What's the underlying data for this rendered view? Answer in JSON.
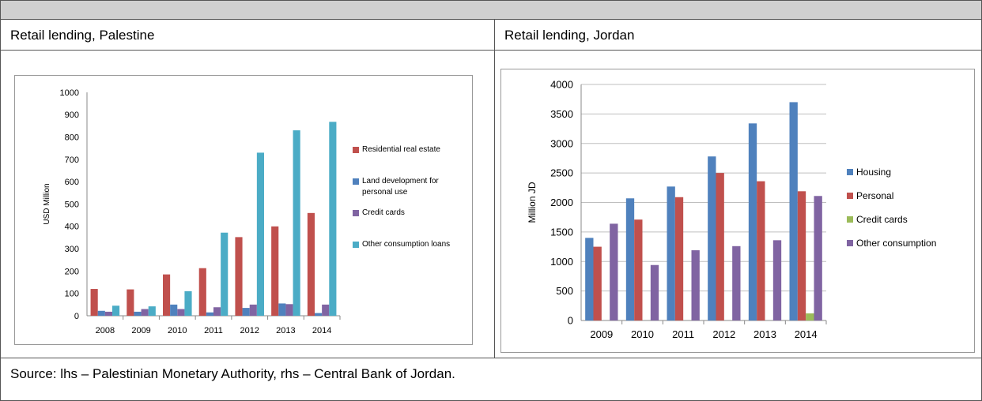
{
  "cells": [
    "Retail lending, Palestine",
    "Retail lending, Jordan"
  ],
  "source": "Source: lhs – Palestinian Monetary Authority, rhs – Central Bank of Jordan.",
  "chart_data": [
    {
      "type": "bar",
      "ylabel": "USD Million",
      "categories": [
        "2008",
        "2009",
        "2010",
        "2011",
        "2012",
        "2013",
        "2014"
      ],
      "series": [
        {
          "name": "Residential real estate",
          "color": "#c0504d",
          "values": [
            120,
            118,
            185,
            213,
            352,
            400,
            460
          ]
        },
        {
          "name": "Land development for personal use",
          "color": "#4f81bd",
          "values": [
            22,
            18,
            50,
            15,
            35,
            55,
            12
          ]
        },
        {
          "name": "Credit cards",
          "color": "#8064a2",
          "values": [
            18,
            30,
            30,
            38,
            50,
            52,
            50
          ]
        },
        {
          "name": "Other consumption loans",
          "color": "#4bacc6",
          "values": [
            45,
            42,
            110,
            372,
            730,
            830,
            868
          ]
        }
      ],
      "ylim": [
        0,
        1000
      ],
      "yticks": [
        0,
        100,
        200,
        300,
        400,
        500,
        600,
        700,
        800,
        900,
        1000
      ],
      "grid": false,
      "legend": "right"
    },
    {
      "type": "bar",
      "ylabel": "Million JD",
      "categories": [
        "2009",
        "2010",
        "2011",
        "2012",
        "2013",
        "2014"
      ],
      "series": [
        {
          "name": "Housing",
          "color": "#4f81bd",
          "values": [
            1400,
            2070,
            2270,
            2780,
            3340,
            3700
          ]
        },
        {
          "name": "Personal",
          "color": "#c0504d",
          "values": [
            1250,
            1710,
            2090,
            2500,
            2360,
            2190
          ]
        },
        {
          "name": "Credit cards",
          "color": "#9bbb59",
          "values": [
            null,
            null,
            null,
            null,
            null,
            120
          ]
        },
        {
          "name": "Other consumption",
          "color": "#8064a2",
          "values": [
            1640,
            940,
            1190,
            1260,
            1360,
            2110
          ]
        }
      ],
      "ylim": [
        0,
        4000
      ],
      "yticks": [
        0,
        500,
        1000,
        1500,
        2000,
        2500,
        3000,
        3500,
        4000
      ],
      "grid": true,
      "legend": "right"
    }
  ]
}
